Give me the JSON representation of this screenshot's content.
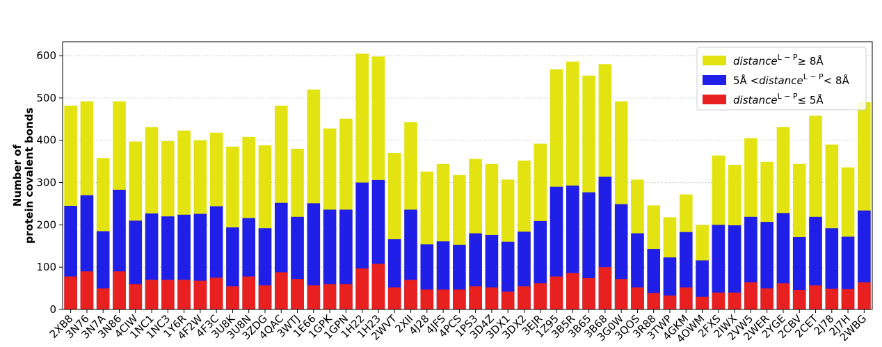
{
  "chart_data": {
    "type": "bar",
    "stacked": true,
    "ylabel_lines": [
      "Number of",
      "protein covalent bonds"
    ],
    "ylim": [
      0,
      633
    ],
    "yticks": [
      0,
      100,
      200,
      300,
      400,
      500,
      600
    ],
    "grid": "y-dotted",
    "legend_position": "top-right",
    "categories": [
      "2XB8",
      "3N76",
      "3N7A",
      "3N86",
      "4CIW",
      "1NC1",
      "1NC3",
      "1Y6R",
      "4F2W",
      "4F3C",
      "3U8K",
      "3U8N",
      "3ZDG",
      "4QAC",
      "3WTJ",
      "1E66",
      "1GPK",
      "1GPN",
      "1H22",
      "1H23",
      "2WVT",
      "2XII",
      "4J28",
      "4JFS",
      "4PCS",
      "1PS3",
      "3D4Z",
      "3DX1",
      "3DX2",
      "3EJR",
      "1Z95",
      "3B5R",
      "3B65",
      "3B68",
      "3G0W",
      "3QOS",
      "3R88",
      "3TWP",
      "4GKM",
      "4OWM",
      "2FXS",
      "2IWX",
      "2VW5",
      "2WER",
      "2YGE",
      "2CBV",
      "2CET",
      "2J78",
      "2J7H",
      "2WBG"
    ],
    "series": [
      {
        "legend_prefix": "5Å <",
        "legend_italic": "distance",
        "legend_sup": "L − P",
        "legend_suffix": "< 8Å",
        "color": "#1f1fe8",
        "cumulative_values": [
          245,
          270,
          185,
          283,
          210,
          227,
          220,
          224,
          226,
          244,
          194,
          216,
          192,
          252,
          219,
          251,
          236,
          236,
          300,
          306,
          166,
          236,
          154,
          161,
          153,
          180,
          176,
          160,
          184,
          209,
          290,
          293,
          277,
          314,
          249,
          180,
          143,
          123,
          183,
          116,
          200,
          199,
          219,
          207,
          228,
          171,
          219,
          192,
          172,
          234
        ]
      },
      {
        "legend_italic": "distance",
        "legend_sup": "L − P",
        "legend_suffix": "≤  5Å",
        "color": "#e82020",
        "values": [
          78,
          90,
          50,
          90,
          60,
          70,
          70,
          70,
          68,
          75,
          55,
          78,
          57,
          88,
          72,
          57,
          60,
          60,
          97,
          108,
          52,
          70,
          47,
          47,
          47,
          55,
          52,
          42,
          55,
          62,
          78,
          86,
          74,
          100,
          72,
          52,
          39,
          33,
          52,
          30,
          40,
          40,
          64,
          50,
          62,
          46,
          57,
          49,
          48,
          64
        ]
      },
      {
        "legend_italic": "distance",
        "legend_sup": "L − P",
        "legend_suffix": "≥  8Å",
        "color": "#e3e312",
        "cumulative_values": [
          482,
          492,
          358,
          492,
          397,
          431,
          398,
          423,
          400,
          418,
          385,
          408,
          388,
          482,
          380,
          520,
          428,
          451,
          605,
          598,
          370,
          443,
          326,
          344,
          318,
          356,
          344,
          307,
          352,
          392,
          568,
          586,
          553,
          580,
          492,
          307,
          246,
          218,
          272,
          200,
          364,
          342,
          405,
          349,
          431,
          344,
          458,
          390,
          336,
          490
        ]
      }
    ],
    "legend_order": [
      2,
      0,
      1
    ]
  }
}
